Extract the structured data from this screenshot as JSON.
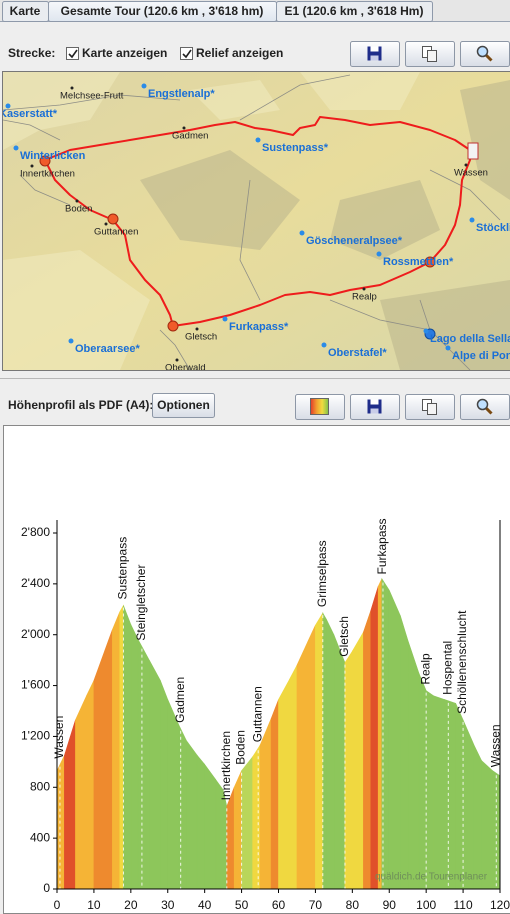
{
  "tabs": [
    "Karte",
    "Gesamte Tour (120.6 km , 3'618 hm)",
    "E1 (120.6 km , 3'618 Hm)"
  ],
  "toolbar": {
    "label": "Strecke:",
    "checkboxes": [
      "Karte anzeigen",
      "Relief anzeigen"
    ]
  },
  "map": {
    "places": [
      "Kaserstatt*",
      "Melchsee-Frutt",
      "Engstlenalp*",
      "Gadmen",
      "Sustenpass*",
      "Winterlicken",
      "Innertkirchen",
      "Wassen",
      "Boden",
      "Guttannen",
      "Göscheneralpsee*",
      "Stöckli",
      "Rossmettlen*",
      "Realp",
      "Oberaarsee*",
      "Gletsch",
      "Furkapass*",
      "Oberstafel*",
      "Lago della Sella",
      "Alpe di Pon",
      "Oberwald"
    ]
  },
  "profile_toolbar": {
    "label": "Höhenprofil als PDF (A4):",
    "button": "Optionen"
  },
  "profile": {
    "type": "area",
    "x": [
      0,
      2,
      5,
      8,
      10,
      13,
      15,
      17,
      18,
      20,
      22,
      25,
      28,
      30,
      33,
      35,
      38,
      40,
      43,
      45,
      46,
      48,
      50,
      53,
      55,
      58,
      60,
      63,
      65,
      68,
      70,
      72,
      73,
      75,
      78,
      80,
      83,
      85,
      87,
      88,
      90,
      93,
      95,
      98,
      100,
      102,
      105,
      108,
      110,
      113,
      115,
      118,
      120
    ],
    "values": [
      930,
      1050,
      1330,
      1520,
      1640,
      1880,
      2040,
      2180,
      2230,
      2080,
      1960,
      1800,
      1640,
      1490,
      1290,
      1170,
      1050,
      980,
      860,
      780,
      650,
      800,
      930,
      1040,
      1130,
      1340,
      1490,
      1650,
      1760,
      1950,
      2075,
      2170,
      2120,
      2000,
      1780,
      1870,
      2020,
      2190,
      2380,
      2440,
      2350,
      2150,
      1960,
      1700,
      1560,
      1520,
      1490,
      1460,
      1330,
      1130,
      1010,
      930,
      890
    ],
    "xlim": [
      0,
      120
    ],
    "ylim": [
      0,
      2800
    ],
    "xticks": [
      0,
      10,
      20,
      30,
      40,
      50,
      60,
      70,
      80,
      90,
      100,
      110,
      120
    ],
    "yticks": [
      0,
      400,
      800,
      {
        "value": 1200,
        "label": "1'200"
      },
      {
        "value": 1600,
        "label": "1'600"
      },
      {
        "value": 2000,
        "label": "2'000"
      },
      {
        "value": 2400,
        "label": "2'400"
      },
      {
        "value": 2800,
        "label": "2'800"
      }
    ],
    "waypoints": [
      {
        "label": "Wassen",
        "x": 0.8
      },
      {
        "label": "Sustenpass",
        "x": 18
      },
      {
        "label": "Steingletscher",
        "x": 23
      },
      {
        "label": "Gadmen",
        "x": 33.5
      },
      {
        "label": "Innertkirchen",
        "x": 46
      },
      {
        "label": "Boden",
        "x": 50
      },
      {
        "label": "Guttannen",
        "x": 54.5
      },
      {
        "label": "Grimselpass",
        "x": 72
      },
      {
        "label": "Gletsch",
        "x": 78
      },
      {
        "label": "Furkapass",
        "x": 88.3
      },
      {
        "label": "Realp",
        "x": 100
      },
      {
        "label": "Hospental",
        "x": 106
      },
      {
        "label": "Schöllenenschlucht",
        "x": 110
      },
      {
        "label": "Wassen",
        "x": 119
      }
    ],
    "watermark": "quäldich.de Tourenplaner"
  }
}
